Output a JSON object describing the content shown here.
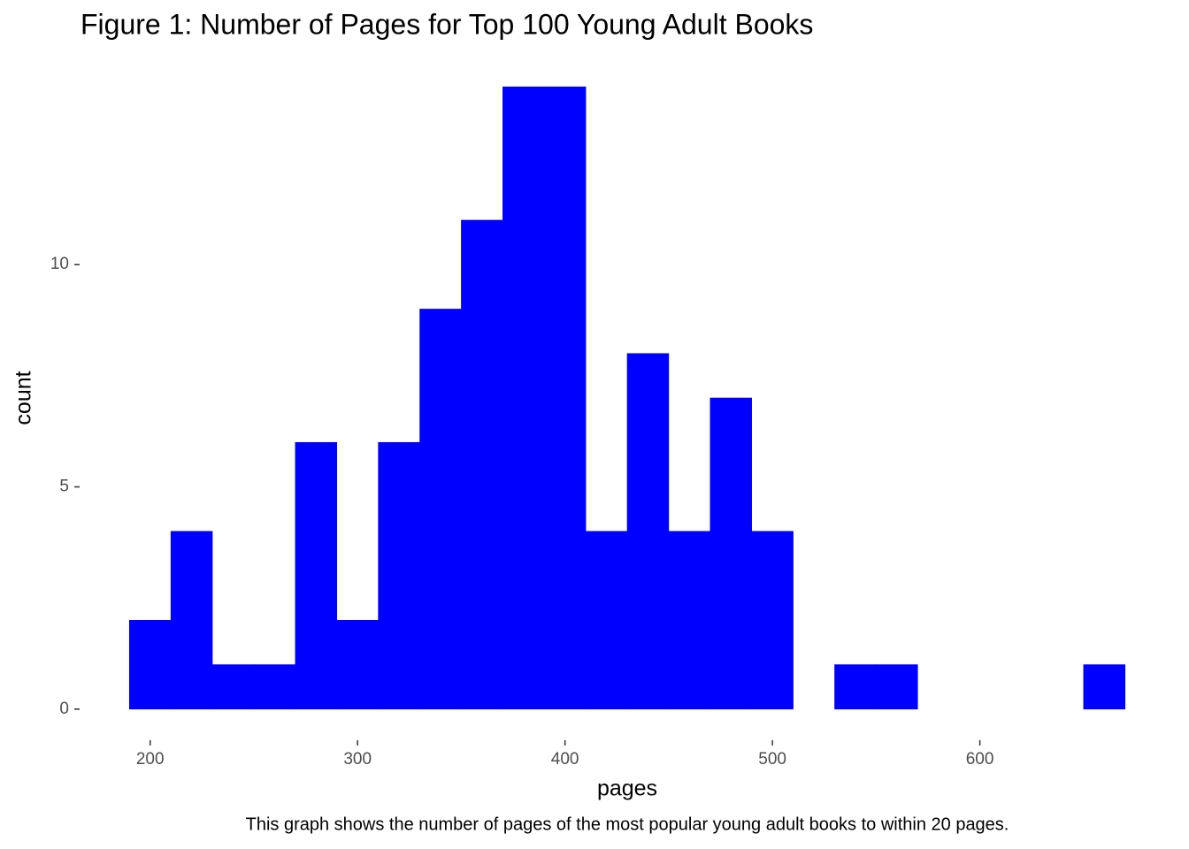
{
  "chart_data": {
    "type": "histogram",
    "title": "Figure 1: Number of Pages for Top 100 Young Adult Books",
    "xlabel": "pages",
    "ylabel": "count",
    "caption": "This graph shows the number of pages of the most popular young adult books to within 20 pages.",
    "bins": [
      190,
      210,
      230,
      250,
      270,
      290,
      310,
      330,
      350,
      370,
      390,
      410,
      430,
      450,
      470,
      490,
      510,
      530,
      550,
      570,
      590,
      610,
      630,
      650,
      670
    ],
    "values": [
      2,
      4,
      1,
      1,
      6,
      2,
      6,
      9,
      11,
      14,
      14,
      4,
      8,
      4,
      7,
      4,
      0,
      1,
      1,
      0,
      0,
      0,
      0,
      1
    ],
    "color": "#0000ff",
    "xlim": [
      166,
      694
    ],
    "ylim": [
      -0.7,
      14.7
    ],
    "xticks": [
      200,
      300,
      400,
      500,
      600
    ],
    "yticks": [
      0,
      5,
      10
    ],
    "grid": false
  }
}
